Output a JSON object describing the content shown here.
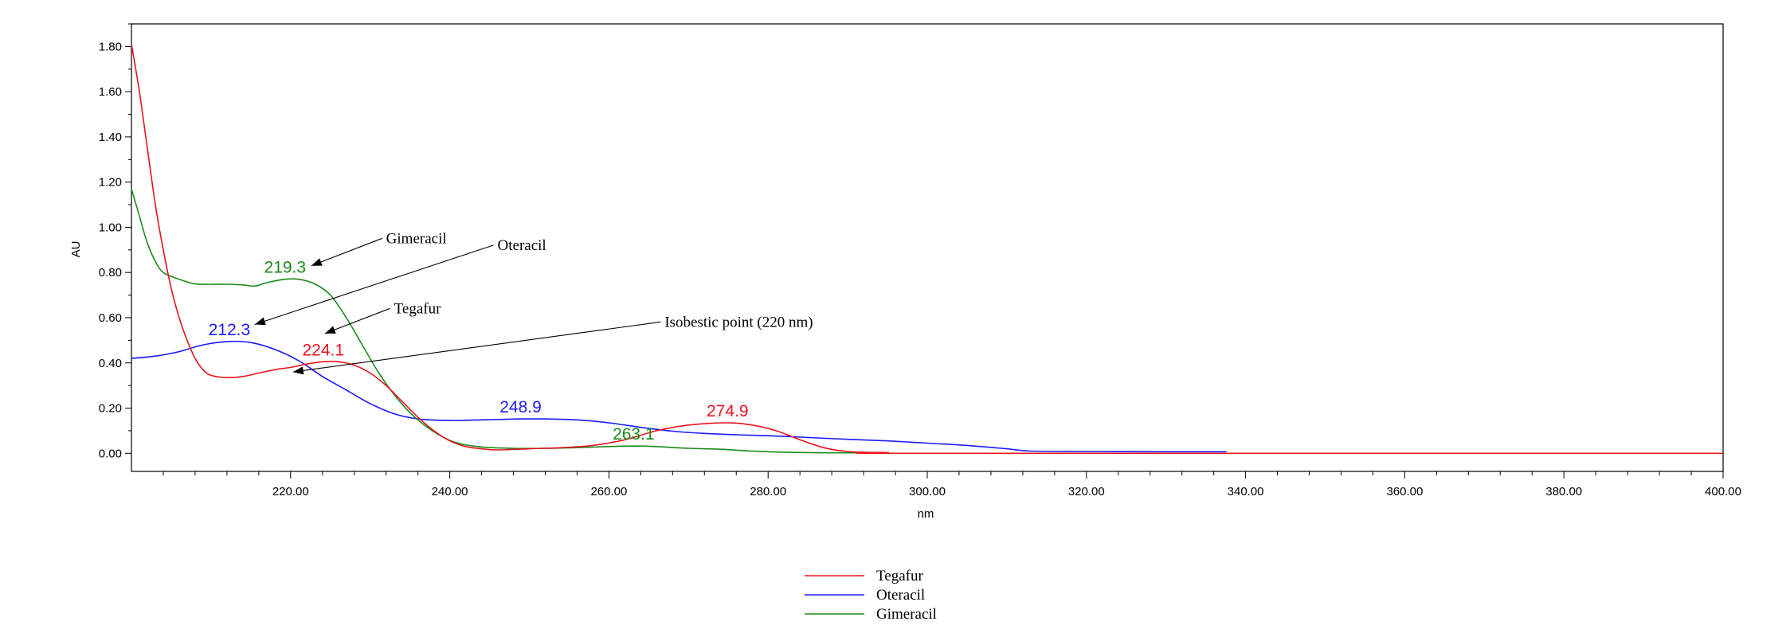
{
  "chart_data": {
    "type": "line",
    "title": "",
    "xlabel": "nm",
    "ylabel": "AU",
    "xlim": [
      200,
      400
    ],
    "ylim": [
      -0.08,
      1.9
    ],
    "x_ticks": [
      "220.00",
      "240.00",
      "260.00",
      "280.00",
      "300.00",
      "320.00",
      "340.00",
      "360.00",
      "380.00",
      "400.00"
    ],
    "x_tick_values": [
      220,
      240,
      260,
      280,
      300,
      320,
      340,
      360,
      380,
      400
    ],
    "y_ticks": [
      "0.00",
      "0.20",
      "0.40",
      "0.60",
      "0.80",
      "1.00",
      "1.20",
      "1.40",
      "1.60",
      "1.80"
    ],
    "y_tick_values": [
      0,
      0.2,
      0.4,
      0.6,
      0.8,
      1.0,
      1.2,
      1.4,
      1.6,
      1.8
    ],
    "grid": false,
    "legend_position": "bottom-center",
    "series": [
      {
        "name": "Tegafur",
        "color": "#e8141e",
        "points": [
          [
            200,
            1.81
          ],
          [
            201,
            1.6
          ],
          [
            202,
            1.35
          ],
          [
            203,
            1.1
          ],
          [
            204,
            0.9
          ],
          [
            205,
            0.73
          ],
          [
            206,
            0.6
          ],
          [
            207,
            0.5
          ],
          [
            208,
            0.42
          ],
          [
            209,
            0.37
          ],
          [
            210,
            0.345
          ],
          [
            212,
            0.335
          ],
          [
            214,
            0.34
          ],
          [
            216,
            0.355
          ],
          [
            218,
            0.37
          ],
          [
            220,
            0.38
          ],
          [
            222,
            0.395
          ],
          [
            224.1,
            0.405
          ],
          [
            226,
            0.405
          ],
          [
            228,
            0.39
          ],
          [
            230,
            0.355
          ],
          [
            232,
            0.3
          ],
          [
            234,
            0.23
          ],
          [
            236,
            0.16
          ],
          [
            238,
            0.1
          ],
          [
            240,
            0.055
          ],
          [
            242,
            0.03
          ],
          [
            244,
            0.02
          ],
          [
            246,
            0.015
          ],
          [
            250,
            0.02
          ],
          [
            254,
            0.025
          ],
          [
            258,
            0.035
          ],
          [
            262,
            0.06
          ],
          [
            266,
            0.1
          ],
          [
            270,
            0.125
          ],
          [
            274.9,
            0.135
          ],
          [
            278,
            0.125
          ],
          [
            281,
            0.1
          ],
          [
            284,
            0.06
          ],
          [
            287,
            0.025
          ],
          [
            290,
            0.008
          ],
          [
            295,
            0.003
          ],
          [
            300,
            0.0
          ],
          [
            400,
            0.0
          ]
        ]
      },
      {
        "name": "Oteracil",
        "color": "#1a1aff",
        "points": [
          [
            200,
            0.42
          ],
          [
            203,
            0.43
          ],
          [
            206,
            0.45
          ],
          [
            209,
            0.48
          ],
          [
            212.3,
            0.495
          ],
          [
            215,
            0.49
          ],
          [
            218,
            0.46
          ],
          [
            221,
            0.41
          ],
          [
            224,
            0.34
          ],
          [
            227,
            0.28
          ],
          [
            230,
            0.22
          ],
          [
            233,
            0.175
          ],
          [
            236,
            0.152
          ],
          [
            240,
            0.145
          ],
          [
            244,
            0.148
          ],
          [
            248.9,
            0.152
          ],
          [
            252,
            0.152
          ],
          [
            256,
            0.148
          ],
          [
            260,
            0.135
          ],
          [
            264,
            0.115
          ],
          [
            268,
            0.098
          ],
          [
            272,
            0.088
          ],
          [
            276,
            0.082
          ],
          [
            280,
            0.078
          ],
          [
            285,
            0.07
          ],
          [
            290,
            0.062
          ],
          [
            295,
            0.055
          ],
          [
            300,
            0.045
          ],
          [
            305,
            0.035
          ],
          [
            310,
            0.02
          ],
          [
            313,
            0.01
          ],
          [
            320,
            0.008
          ],
          [
            330,
            0.007
          ],
          [
            337.6,
            0.007
          ]
        ]
      },
      {
        "name": "Gimeracil",
        "color": "#1a8a1a",
        "points": [
          [
            200,
            1.17
          ],
          [
            201,
            1.05
          ],
          [
            202,
            0.93
          ],
          [
            203,
            0.85
          ],
          [
            204,
            0.8
          ],
          [
            206,
            0.77
          ],
          [
            208,
            0.75
          ],
          [
            210,
            0.748
          ],
          [
            212,
            0.748
          ],
          [
            214,
            0.745
          ],
          [
            215.5,
            0.74
          ],
          [
            217,
            0.755
          ],
          [
            219.3,
            0.77
          ],
          [
            221,
            0.77
          ],
          [
            223,
            0.75
          ],
          [
            225,
            0.7
          ],
          [
            227,
            0.6
          ],
          [
            229,
            0.48
          ],
          [
            231,
            0.36
          ],
          [
            233,
            0.26
          ],
          [
            235,
            0.18
          ],
          [
            237,
            0.12
          ],
          [
            239,
            0.075
          ],
          [
            241,
            0.045
          ],
          [
            244,
            0.028
          ],
          [
            248,
            0.022
          ],
          [
            252,
            0.022
          ],
          [
            256,
            0.025
          ],
          [
            260,
            0.03
          ],
          [
            263.1,
            0.032
          ],
          [
            266,
            0.03
          ],
          [
            270,
            0.022
          ],
          [
            274,
            0.018
          ],
          [
            278,
            0.01
          ],
          [
            283,
            0.004
          ],
          [
            290,
            0.002
          ],
          [
            295,
            0.001
          ]
        ]
      }
    ],
    "peak_labels": [
      {
        "text": "219.3",
        "x": 219.3,
        "y": 0.77,
        "color": "#1a8a1a"
      },
      {
        "text": "212.3",
        "x": 212.3,
        "y": 0.495,
        "color": "#1a1aff"
      },
      {
        "text": "224.1",
        "x": 224.1,
        "y": 0.405,
        "color": "#e8141e"
      },
      {
        "text": "248.9",
        "x": 248.9,
        "y": 0.152,
        "color": "#1a1aff"
      },
      {
        "text": "274.9",
        "x": 274.9,
        "y": 0.135,
        "color": "#e8141e"
      },
      {
        "text": "263.1",
        "x": 263.1,
        "y": 0.032,
        "color": "#1a8a1a"
      }
    ],
    "annotations": [
      {
        "text": "Gimeracil",
        "x": 232,
        "y": 0.93,
        "arrow_to": [
          222.6,
          0.83
        ]
      },
      {
        "text": "Oteracil",
        "x": 246,
        "y": 0.9,
        "arrow_to": [
          215.5,
          0.57
        ]
      },
      {
        "text": "Tegafur",
        "x": 233,
        "y": 0.62,
        "arrow_to": [
          224.3,
          0.53
        ]
      },
      {
        "text": "Isobestic point (220 nm)",
        "x": 267,
        "y": 0.56,
        "arrow_to": [
          220.3,
          0.36
        ]
      }
    ]
  }
}
